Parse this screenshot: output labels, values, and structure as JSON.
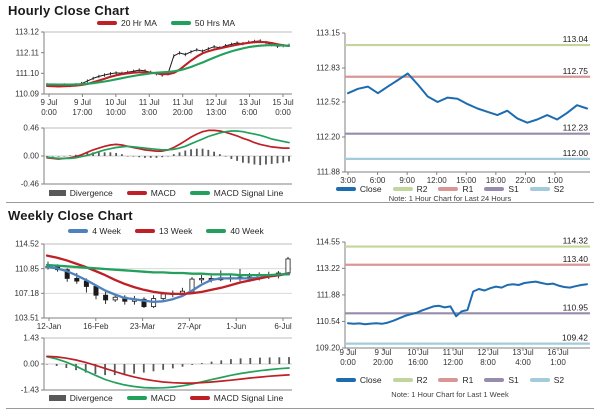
{
  "panels": {
    "hourly": {
      "title": "Hourly Close Chart"
    },
    "weekly": {
      "title": "Weekly Close Chart"
    },
    "hour24_note": "Note: 1 Hour Chart for Last 24 Hours",
    "week_note": "Note: 1 Hour Chart for Last 1 Week"
  },
  "colors": {
    "red": "#BE2026",
    "green": "#22A05C",
    "steel_blue": "#4F81BD",
    "close_blue": "#1E6CB0",
    "r2": "#C2D69B",
    "r1": "#D99694",
    "s1": "#978CAD",
    "s2": "#A2CBDB",
    "divergence": "#595959",
    "black_series": "#1a1a1a"
  },
  "legends": {
    "hourly_ma": [
      {
        "label": "20 Hr MA",
        "color": "#BE2026"
      },
      {
        "label": "50 Hrs MA",
        "color": "#22A05C"
      }
    ],
    "hourly_macd": [
      {
        "label": "Divergence",
        "color": "#595959",
        "block": true
      },
      {
        "label": "MACD",
        "color": "#BE2026"
      },
      {
        "label": "MACD Signal Line",
        "color": "#22A05C"
      }
    ],
    "weekly_ma": [
      {
        "label": "4 Week",
        "color": "#4F81BD"
      },
      {
        "label": "13 Week",
        "color": "#BE2026"
      },
      {
        "label": "40 Week",
        "color": "#22A05C"
      }
    ],
    "weekly_macd": [
      {
        "label": "Divergence",
        "color": "#595959",
        "block": true
      },
      {
        "label": "MACD",
        "color": "#22A05C"
      },
      {
        "label": "MACD Signal Line",
        "color": "#BE2026"
      }
    ],
    "pivot": [
      {
        "label": "Close",
        "color": "#1E6CB0"
      },
      {
        "label": "R2",
        "color": "#C2D69B"
      },
      {
        "label": "R1",
        "color": "#D99694"
      },
      {
        "label": "S1",
        "color": "#978CAD"
      },
      {
        "label": "S2",
        "color": "#A2CBDB"
      }
    ]
  },
  "chart_data": [
    {
      "id": "hourly_close",
      "type": "line",
      "title": "Hourly Close Chart",
      "ylim": [
        110.09,
        113.12
      ],
      "y_ticks": [
        "113.12",
        "112.11",
        "111.10",
        "110.09"
      ],
      "x_ticks": [
        [
          "9 Jul",
          "0:00"
        ],
        [
          "9 Jul",
          "17:00"
        ],
        [
          "10 Jul",
          "10:00"
        ],
        [
          "11 Jul",
          "3:00"
        ],
        [
          "11 Jul",
          "20:00"
        ],
        [
          "12 Jul",
          "13:00"
        ],
        [
          "13 Jul",
          "6:00"
        ],
        [
          "15 Jul",
          "0:00"
        ]
      ],
      "series": [
        {
          "name": "Close",
          "type": "ohlc",
          "color": "#1a1a1a",
          "width": 1,
          "values": [
            110.55,
            110.52,
            110.5,
            110.53,
            110.51,
            110.54,
            110.6,
            110.72,
            110.85,
            110.95,
            111.02,
            111.08,
            111.12,
            111.1,
            111.15,
            111.2,
            111.26,
            111.22,
            111.15,
            111.08,
            111.02,
            111.08,
            111.95,
            112.1,
            112.02,
            112.15,
            112.25,
            112.18,
            112.3,
            112.4,
            112.35,
            112.45,
            112.52,
            112.58,
            112.55,
            112.62,
            112.66,
            112.68,
            112.6,
            112.5,
            112.42,
            112.45,
            112.47
          ]
        },
        {
          "name": "20 Hr MA",
          "type": "line",
          "color": "#BE2026",
          "width": 2.1,
          "values": [
            110.48,
            110.47,
            110.46,
            110.47,
            110.48,
            110.5,
            110.53,
            110.58,
            110.66,
            110.75,
            110.84,
            110.93,
            111.0,
            111.06,
            111.1,
            111.13,
            111.15,
            111.15,
            111.13,
            111.1,
            111.07,
            111.06,
            111.12,
            111.28,
            111.5,
            111.72,
            111.92,
            112.08,
            112.18,
            112.26,
            112.32,
            112.38,
            112.44,
            112.5,
            112.55,
            112.59,
            112.62,
            112.63,
            112.62,
            112.58,
            112.52,
            112.47,
            112.44
          ]
        },
        {
          "name": "50 Hrs MA",
          "type": "line",
          "color": "#22A05C",
          "width": 2.1,
          "values": [
            110.56,
            110.56,
            110.55,
            110.55,
            110.55,
            110.56,
            110.57,
            110.59,
            110.62,
            110.66,
            110.7,
            110.75,
            110.81,
            110.86,
            110.92,
            110.97,
            111.02,
            111.06,
            111.1,
            111.13,
            111.15,
            111.17,
            111.2,
            111.25,
            111.32,
            111.41,
            111.52,
            111.63,
            111.75,
            111.87,
            111.98,
            112.08,
            112.17,
            112.25,
            112.32,
            112.38,
            112.42,
            112.45,
            112.47,
            112.48,
            112.47,
            112.46,
            112.44
          ]
        }
      ]
    },
    {
      "id": "hourly_macd",
      "type": "line",
      "ylim": [
        -0.46,
        0.46
      ],
      "y_ticks": [
        "0.46",
        "0.00",
        "-0.46"
      ],
      "series": [
        {
          "name": "Divergence",
          "type": "bar",
          "color": "#595959",
          "values": [
            -0.01,
            -0.01,
            -0.01,
            0.0,
            0.01,
            0.02,
            0.03,
            0.05,
            0.06,
            0.06,
            0.06,
            0.06,
            0.05,
            0.03,
            0.0,
            -0.01,
            -0.02,
            -0.03,
            -0.03,
            -0.03,
            -0.02,
            0.0,
            0.03,
            0.06,
            0.09,
            0.11,
            0.12,
            0.12,
            0.1,
            0.07,
            0.03,
            -0.01,
            -0.05,
            -0.08,
            -0.11,
            -0.12,
            -0.14,
            -0.15,
            -0.14,
            -0.13,
            -0.12,
            -0.11,
            -0.09
          ]
        },
        {
          "name": "MACD",
          "type": "line",
          "color": "#BE2026",
          "width": 1.7,
          "values": [
            -0.03,
            -0.04,
            -0.05,
            -0.04,
            -0.03,
            -0.01,
            0.02,
            0.06,
            0.1,
            0.13,
            0.16,
            0.18,
            0.19,
            0.18,
            0.16,
            0.14,
            0.12,
            0.1,
            0.09,
            0.08,
            0.08,
            0.1,
            0.14,
            0.19,
            0.25,
            0.31,
            0.36,
            0.4,
            0.42,
            0.42,
            0.41,
            0.39,
            0.36,
            0.33,
            0.29,
            0.26,
            0.22,
            0.19,
            0.17,
            0.15,
            0.14,
            0.13,
            0.13
          ]
        },
        {
          "name": "MACD Signal Line",
          "type": "line",
          "color": "#22A05C",
          "width": 1.7,
          "values": [
            -0.02,
            -0.03,
            -0.04,
            -0.04,
            -0.04,
            -0.03,
            -0.01,
            0.01,
            0.04,
            0.07,
            0.1,
            0.12,
            0.14,
            0.15,
            0.16,
            0.15,
            0.14,
            0.13,
            0.12,
            0.11,
            0.1,
            0.1,
            0.11,
            0.13,
            0.16,
            0.2,
            0.24,
            0.28,
            0.32,
            0.35,
            0.38,
            0.4,
            0.41,
            0.41,
            0.4,
            0.38,
            0.36,
            0.34,
            0.31,
            0.28,
            0.26,
            0.24,
            0.22
          ]
        }
      ]
    },
    {
      "id": "pivot_24h",
      "type": "line",
      "note": "Note: 1 Hour Chart for Last 24 Hours",
      "ylim": [
        111.88,
        113.15
      ],
      "y_ticks": [
        "113.15",
        "112.83",
        "112.52",
        "112.20",
        "111.88"
      ],
      "x_ticks": [
        "3:00",
        "6:00",
        "9:00",
        "12:00",
        "15:00",
        "18:00",
        "22:00",
        "1:00"
      ],
      "pivots": [
        {
          "name": "R2",
          "label": "113.04",
          "value": 113.04,
          "color": "#C2D69B"
        },
        {
          "name": "R1",
          "label": "112.75",
          "value": 112.75,
          "color": "#D99694"
        },
        {
          "name": "S1",
          "label": "112.23",
          "value": 112.23,
          "color": "#978CAD"
        },
        {
          "name": "S2",
          "label": "112.00",
          "value": 112.0,
          "color": "#A2CBDB"
        }
      ],
      "series": [
        {
          "name": "Close",
          "type": "line",
          "color": "#1E6CB0",
          "width": 2,
          "values": [
            112.6,
            112.64,
            112.66,
            112.6,
            112.66,
            112.72,
            112.78,
            112.68,
            112.57,
            112.52,
            112.56,
            112.55,
            112.5,
            112.46,
            112.43,
            112.4,
            112.44,
            112.37,
            112.33,
            112.36,
            112.4,
            112.36,
            112.42,
            112.49,
            112.46
          ]
        }
      ]
    },
    {
      "id": "weekly_close",
      "type": "candlestick",
      "title": "Weekly Close Chart",
      "ylim": [
        103.51,
        114.52
      ],
      "y_ticks": [
        "114.52",
        "110.85",
        "107.18",
        "103.51"
      ],
      "x_ticks": [
        "12-Jan",
        "16-Feb",
        "23-Mar",
        "27-Apr",
        "1-Jun",
        "6-Jul"
      ],
      "candles": [
        [
          111.0,
          111.9,
          110.7,
          111.2
        ],
        [
          111.2,
          111.5,
          110.4,
          110.7
        ],
        [
          110.7,
          110.9,
          108.9,
          109.4
        ],
        [
          109.4,
          110.2,
          108.6,
          109.0
        ],
        [
          109.0,
          109.4,
          107.3,
          108.2
        ],
        [
          108.2,
          108.5,
          106.3,
          106.9
        ],
        [
          106.9,
          107.4,
          105.6,
          106.2
        ],
        [
          106.2,
          107.0,
          105.9,
          106.6
        ],
        [
          106.6,
          106.9,
          105.5,
          106.0
        ],
        [
          106.0,
          106.8,
          105.5,
          106.3
        ],
        [
          106.3,
          106.6,
          105.0,
          105.2
        ],
        [
          105.2,
          106.9,
          105.0,
          106.4
        ],
        [
          106.4,
          107.4,
          105.9,
          107.1
        ],
        [
          107.1,
          107.6,
          106.6,
          107.2
        ],
        [
          107.2,
          108.0,
          106.9,
          107.5
        ],
        [
          107.5,
          109.6,
          107.3,
          109.3
        ],
        [
          109.3,
          109.9,
          108.7,
          109.4
        ],
        [
          109.4,
          109.8,
          108.8,
          109.2
        ],
        [
          109.2,
          110.6,
          109.0,
          109.5
        ],
        [
          109.5,
          110.0,
          108.9,
          109.3
        ],
        [
          109.3,
          110.8,
          109.0,
          109.6
        ],
        [
          109.6,
          110.2,
          108.9,
          109.4
        ],
        [
          109.4,
          110.3,
          109.1,
          110.0
        ],
        [
          110.0,
          110.4,
          109.3,
          109.8
        ],
        [
          109.8,
          110.5,
          109.4,
          110.2
        ],
        [
          110.2,
          112.6,
          110.0,
          112.3
        ]
      ],
      "series": [
        {
          "name": "4 Week",
          "type": "line",
          "color": "#4F81BD",
          "width": 2.3,
          "values": [
            111.1,
            110.9,
            110.5,
            109.9,
            109.2,
            108.4,
            107.6,
            107.0,
            106.5,
            106.3,
            106.1,
            105.9,
            106.0,
            106.3,
            106.8,
            107.6,
            108.5,
            109.2,
            109.4,
            109.4,
            109.4,
            109.4,
            109.5,
            109.7,
            109.9,
            110.2
          ]
        },
        {
          "name": "13 Week",
          "type": "line",
          "color": "#BE2026",
          "width": 2.3,
          "values": [
            112.8,
            112.5,
            112.1,
            111.6,
            111.1,
            110.5,
            109.9,
            109.2,
            108.6,
            108.1,
            107.7,
            107.4,
            107.2,
            107.1,
            107.1,
            107.2,
            107.4,
            107.7,
            108.0,
            108.4,
            108.8,
            109.1,
            109.4,
            109.7,
            109.9,
            110.1
          ]
        },
        {
          "name": "40 Week",
          "type": "line",
          "color": "#22A05C",
          "width": 2.3,
          "values": [
            111.4,
            111.3,
            111.2,
            111.1,
            111.0,
            110.9,
            110.8,
            110.7,
            110.6,
            110.5,
            110.4,
            110.3,
            110.3,
            110.2,
            110.2,
            110.1,
            110.1,
            110.0,
            110.0,
            110.0,
            109.9,
            109.9,
            109.9,
            109.9,
            110.0,
            110.0
          ]
        }
      ]
    },
    {
      "id": "weekly_macd",
      "type": "line",
      "ylim": [
        -1.43,
        1.43
      ],
      "y_ticks": [
        "1.43",
        "0.00",
        "-1.43"
      ],
      "series": [
        {
          "name": "Divergence",
          "type": "bar",
          "color": "#595959",
          "values": [
            -0.02,
            -0.11,
            -0.22,
            -0.34,
            -0.47,
            -0.55,
            -0.61,
            -0.61,
            -0.58,
            -0.53,
            -0.47,
            -0.4,
            -0.32,
            -0.24,
            -0.15,
            -0.05,
            0.05,
            0.13,
            0.2,
            0.27,
            0.31,
            0.33,
            0.35,
            0.36,
            0.37,
            0.38
          ]
        },
        {
          "name": "MACD",
          "type": "line",
          "color": "#22A05C",
          "width": 1.7,
          "values": [
            0.4,
            0.28,
            0.1,
            -0.12,
            -0.38,
            -0.62,
            -0.85,
            -1.02,
            -1.15,
            -1.24,
            -1.3,
            -1.32,
            -1.31,
            -1.27,
            -1.2,
            -1.1,
            -0.98,
            -0.86,
            -0.74,
            -0.62,
            -0.52,
            -0.44,
            -0.37,
            -0.31,
            -0.26,
            -0.22
          ]
        },
        {
          "name": "MACD Signal Line",
          "type": "line",
          "color": "#BE2026",
          "width": 1.7,
          "values": [
            0.42,
            0.39,
            0.32,
            0.22,
            0.09,
            -0.07,
            -0.24,
            -0.41,
            -0.57,
            -0.71,
            -0.83,
            -0.92,
            -0.99,
            -1.03,
            -1.05,
            -1.05,
            -1.03,
            -0.99,
            -0.94,
            -0.89,
            -0.83,
            -0.77,
            -0.72,
            -0.67,
            -0.63,
            -0.6
          ]
        }
      ]
    },
    {
      "id": "pivot_week",
      "type": "line",
      "note": "Note: 1 Hour Chart for Last 1 Week",
      "ylim": [
        109.2,
        114.55
      ],
      "y_ticks": [
        "114.55",
        "113.22",
        "111.88",
        "110.54",
        "109.20"
      ],
      "x_ticks": [
        [
          "9 Jul",
          "0:00"
        ],
        [
          "9 Jul",
          "20:00"
        ],
        [
          "10 Jul",
          "16:00"
        ],
        [
          "11 Jul",
          "12:00"
        ],
        [
          "12 Jul",
          "8:00"
        ],
        [
          "13 Jul",
          "4:00"
        ],
        [
          "16 Jul",
          "1:00"
        ]
      ],
      "pivots": [
        {
          "name": "R2",
          "label": "114.32",
          "value": 114.32,
          "color": "#C2D69B"
        },
        {
          "name": "R1",
          "label": "113.40",
          "value": 113.4,
          "color": "#D99694"
        },
        {
          "name": "S1",
          "label": "110.95",
          "value": 110.95,
          "color": "#978CAD"
        },
        {
          "name": "S2",
          "label": "109.42",
          "value": 109.42,
          "color": "#A2CBDB"
        }
      ],
      "series": [
        {
          "name": "Close",
          "type": "line",
          "color": "#1E6CB0",
          "width": 2,
          "values": [
            110.45,
            110.42,
            110.44,
            110.4,
            110.43,
            110.45,
            110.42,
            110.48,
            110.58,
            110.7,
            110.82,
            110.9,
            110.97,
            111.1,
            111.2,
            111.3,
            111.33,
            111.25,
            111.3,
            110.8,
            111.05,
            111.12,
            112.05,
            112.18,
            112.1,
            112.22,
            112.3,
            112.25,
            112.38,
            112.42,
            112.38,
            112.48,
            112.52,
            112.55,
            112.48,
            112.42,
            112.45,
            112.35,
            112.28,
            112.25,
            112.32,
            112.38,
            112.42
          ]
        }
      ]
    }
  ]
}
